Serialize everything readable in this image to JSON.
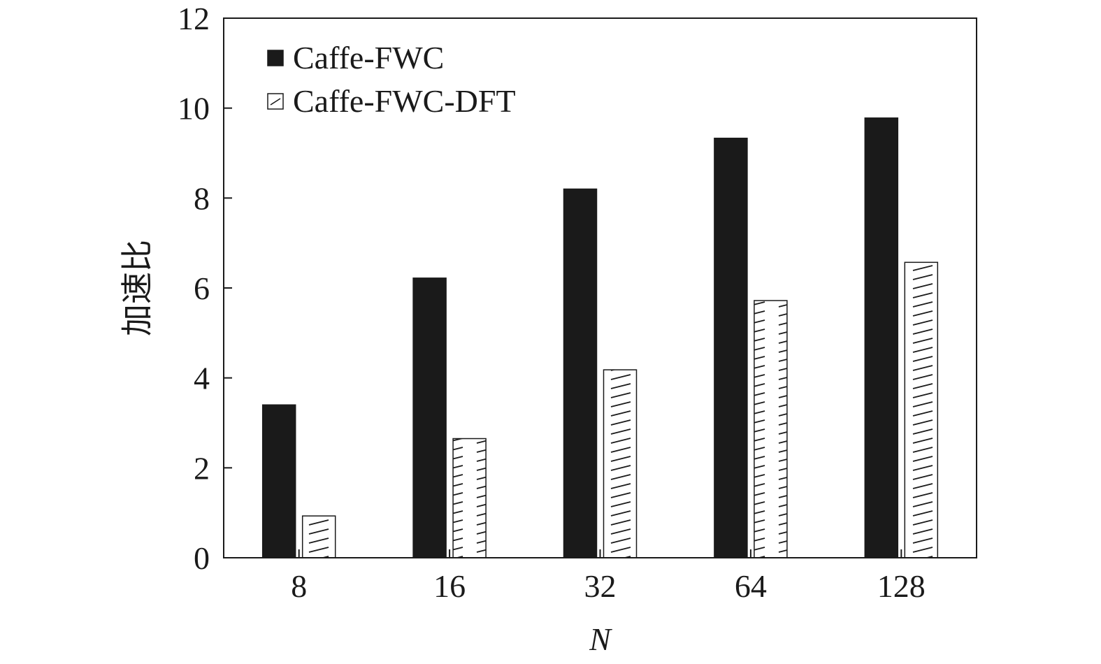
{
  "chart_data": {
    "type": "bar",
    "categories": [
      "8",
      "16",
      "32",
      "64",
      "128"
    ],
    "series": [
      {
        "name": "Caffe-FWC",
        "values": [
          3.4,
          6.22,
          8.2,
          9.33,
          9.78
        ],
        "color": "#1a1a1a",
        "pattern": "solid"
      },
      {
        "name": "Caffe-FWC-DFT",
        "values": [
          0.93,
          2.65,
          4.18,
          5.72,
          6.57
        ],
        "color": "#ffffff",
        "pattern": "hatched"
      }
    ],
    "xlabel": "N",
    "ylabel": "加速比",
    "ylim": [
      0,
      12
    ],
    "yticks": [
      "0",
      "2",
      "4",
      "6",
      "8",
      "10",
      "12"
    ],
    "grid": false,
    "legend_position": "top-left"
  }
}
